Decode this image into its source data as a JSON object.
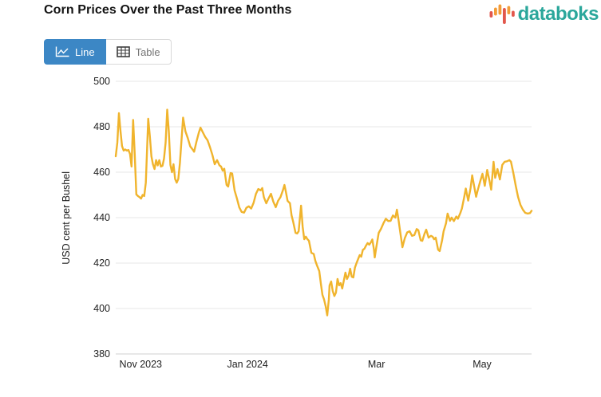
{
  "header": {
    "title": "Corn Prices Over the Past Three Months"
  },
  "logo": {
    "text": "databoks",
    "text_color": "#2BA79B",
    "icon_colors": {
      "orange": "#F39C38",
      "red": "#E2574C"
    }
  },
  "toolbar": {
    "line_label": "Line",
    "table_label": "Table",
    "active": "Line",
    "active_color": "#3C87C5",
    "inactive_text_color": "#757575"
  },
  "chart_data": {
    "type": "line",
    "title": "Corn Prices Over the Past Three Months",
    "xlabel": "",
    "ylabel": "USD cent per Bushel",
    "ylim": [
      380,
      500
    ],
    "y_ticks": [
      500,
      480,
      460,
      440,
      420,
      400,
      380
    ],
    "x_ticks": [
      {
        "label": "Nov 2023",
        "pos": 0.06
      },
      {
        "label": "Jan 2024",
        "pos": 0.317
      },
      {
        "label": "Mar",
        "pos": 0.627
      },
      {
        "label": "May",
        "pos": 0.881
      }
    ],
    "grid": true,
    "legend": "none",
    "line_color": "#F0B42D",
    "grid_color": "#E7E7E7",
    "axis_line_color": "#CFCFCF",
    "points_format": "[x_position, price_usd_cents]",
    "points": [
      [
        143,
        467
      ],
      [
        145,
        473
      ],
      [
        147,
        486
      ],
      [
        149,
        478
      ],
      [
        151,
        471.5
      ],
      [
        153,
        469.5
      ],
      [
        155,
        470
      ],
      [
        157,
        469.5
      ],
      [
        159,
        469.8
      ],
      [
        161,
        468
      ],
      [
        163,
        462.5
      ],
      [
        165,
        483
      ],
      [
        167,
        468
      ],
      [
        169,
        450.2
      ],
      [
        171,
        449.5
      ],
      [
        173,
        449
      ],
      [
        175,
        448.4
      ],
      [
        177,
        450
      ],
      [
        179,
        449.5
      ],
      [
        181,
        455.4
      ],
      [
        184,
        483.5
      ],
      [
        186,
        476
      ],
      [
        188,
        467
      ],
      [
        190,
        463.5
      ],
      [
        192,
        461.4
      ],
      [
        194,
        465.3
      ],
      [
        196,
        463
      ],
      [
        198,
        465.3
      ],
      [
        200,
        462.5
      ],
      [
        202,
        462.8
      ],
      [
        204,
        466
      ],
      [
        206,
        473
      ],
      [
        208,
        487.5
      ],
      [
        210,
        478
      ],
      [
        212,
        463.2
      ],
      [
        214,
        460
      ],
      [
        216,
        463.5
      ],
      [
        218,
        457
      ],
      [
        220,
        455.4
      ],
      [
        222,
        457
      ],
      [
        224,
        464
      ],
      [
        226,
        474
      ],
      [
        228,
        484
      ],
      [
        231,
        478
      ],
      [
        234,
        475
      ],
      [
        237,
        471.4
      ],
      [
        240,
        470
      ],
      [
        242,
        469
      ],
      [
        245,
        473.5
      ],
      [
        248,
        477.5
      ],
      [
        250,
        479.6
      ],
      [
        253,
        477.5
      ],
      [
        256,
        475.5
      ],
      [
        259,
        474
      ],
      [
        262,
        471
      ],
      [
        265,
        467.6
      ],
      [
        268,
        463.5
      ],
      [
        271,
        465.3
      ],
      [
        274,
        463
      ],
      [
        276,
        462.5
      ],
      [
        278,
        460.7
      ],
      [
        280,
        461.5
      ],
      [
        283,
        454.4
      ],
      [
        285,
        453.7
      ],
      [
        288,
        459.6
      ],
      [
        290,
        459.4
      ],
      [
        293,
        452
      ],
      [
        296,
        448.5
      ],
      [
        299,
        444.5
      ],
      [
        302,
        442.5
      ],
      [
        305,
        442.2
      ],
      [
        308,
        444.3
      ],
      [
        311,
        445
      ],
      [
        314,
        444
      ],
      [
        317,
        446.5
      ],
      [
        320,
        450.5
      ],
      [
        323,
        452.6
      ],
      [
        326,
        452
      ],
      [
        328,
        453
      ],
      [
        330,
        449
      ],
      [
        333,
        446.3
      ],
      [
        336,
        448.5
      ],
      [
        339,
        450.5
      ],
      [
        342,
        447
      ],
      [
        345,
        444.6
      ],
      [
        348,
        447.4
      ],
      [
        351,
        449
      ],
      [
        354,
        452
      ],
      [
        356,
        454.4
      ],
      [
        358,
        451
      ],
      [
        360,
        447.4
      ],
      [
        363,
        446.3
      ],
      [
        365,
        441
      ],
      [
        367,
        438.2
      ],
      [
        370,
        433.3
      ],
      [
        372,
        433
      ],
      [
        374,
        434
      ],
      [
        377,
        445.3
      ],
      [
        379,
        436
      ],
      [
        381,
        430.5
      ],
      [
        383,
        431.6
      ],
      [
        385,
        430.5
      ],
      [
        387,
        429.8
      ],
      [
        390,
        424.5
      ],
      [
        393,
        424
      ],
      [
        395,
        421
      ],
      [
        397,
        419
      ],
      [
        400,
        416.5
      ],
      [
        402,
        411
      ],
      [
        404,
        406
      ],
      [
        406,
        404
      ],
      [
        408,
        401
      ],
      [
        410,
        397
      ],
      [
        412,
        404
      ],
      [
        413,
        410.2
      ],
      [
        415,
        411.9
      ],
      [
        417,
        407.7
      ],
      [
        419,
        405.5
      ],
      [
        421,
        407
      ],
      [
        423,
        413
      ],
      [
        425,
        410.2
      ],
      [
        427,
        411.2
      ],
      [
        429,
        408.8
      ],
      [
        431,
        412.3
      ],
      [
        433,
        415.8
      ],
      [
        435,
        413
      ],
      [
        437,
        414.5
      ],
      [
        439,
        417.5
      ],
      [
        441,
        414
      ],
      [
        443,
        413.7
      ],
      [
        445,
        418
      ],
      [
        447,
        420
      ],
      [
        449,
        421.8
      ],
      [
        451,
        423.5
      ],
      [
        453,
        422.8
      ],
      [
        455,
        425.8
      ],
      [
        457,
        426.3
      ],
      [
        459,
        427.7
      ],
      [
        461,
        428.8
      ],
      [
        463,
        428.1
      ],
      [
        465,
        429
      ],
      [
        467,
        430.4
      ],
      [
        469,
        426
      ],
      [
        470,
        422.5
      ],
      [
        472,
        427
      ],
      [
        475,
        433.3
      ],
      [
        478,
        435.1
      ],
      [
        481,
        437.5
      ],
      [
        484,
        439.5
      ],
      [
        487,
        438.5
      ],
      [
        490,
        438.6
      ],
      [
        493,
        441
      ],
      [
        496,
        440
      ],
      [
        498,
        443.5
      ],
      [
        500,
        439
      ],
      [
        502,
        434
      ],
      [
        505,
        427
      ],
      [
        508,
        431
      ],
      [
        511,
        433.5
      ],
      [
        514,
        434
      ],
      [
        517,
        432
      ],
      [
        520,
        432.3
      ],
      [
        523,
        435
      ],
      [
        525,
        434.5
      ],
      [
        528,
        430
      ],
      [
        530,
        429.8
      ],
      [
        533,
        433
      ],
      [
        535,
        434.7
      ],
      [
        538,
        431.2
      ],
      [
        541,
        432
      ],
      [
        543,
        431.6
      ],
      [
        545,
        430.5
      ],
      [
        547,
        431.2
      ],
      [
        550,
        425.9
      ],
      [
        552,
        425.3
      ],
      [
        555,
        430
      ],
      [
        557,
        434
      ],
      [
        560,
        437.5
      ],
      [
        562,
        441.8
      ],
      [
        565,
        438.6
      ],
      [
        567,
        440
      ],
      [
        570,
        438.5
      ],
      [
        573,
        440.5
      ],
      [
        575,
        439.5
      ],
      [
        578,
        442
      ],
      [
        580,
        444
      ],
      [
        583,
        449
      ],
      [
        585,
        452.8
      ],
      [
        588,
        447.5
      ],
      [
        591,
        453
      ],
      [
        593,
        458.6
      ],
      [
        596,
        453
      ],
      [
        598,
        449.2
      ],
      [
        600,
        452
      ],
      [
        603,
        455.8
      ],
      [
        606,
        459.3
      ],
      [
        609,
        454
      ],
      [
        612,
        461
      ],
      [
        615,
        456
      ],
      [
        617,
        452.3
      ],
      [
        620,
        464.6
      ],
      [
        622,
        457.5
      ],
      [
        625,
        461.4
      ],
      [
        628,
        456.8
      ],
      [
        631,
        463.2
      ],
      [
        634,
        464.6
      ],
      [
        637,
        464.8
      ],
      [
        640,
        465.3
      ],
      [
        642,
        464.6
      ],
      [
        645,
        459.6
      ],
      [
        648,
        454
      ],
      [
        651,
        449.1
      ],
      [
        654,
        445.6
      ],
      [
        657,
        443.5
      ],
      [
        660,
        442.1
      ],
      [
        663,
        441.8
      ],
      [
        666,
        442
      ],
      [
        668,
        443
      ]
    ]
  }
}
